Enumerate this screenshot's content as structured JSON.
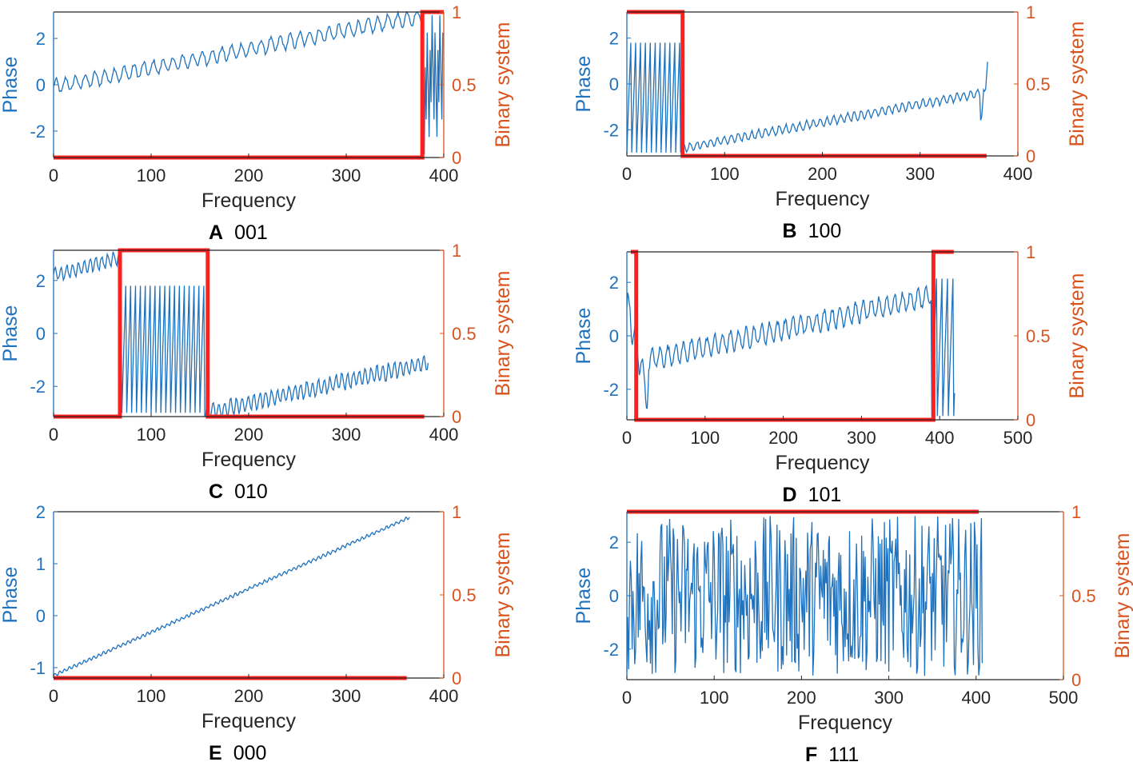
{
  "colors": {
    "phase": "#1f72bd",
    "binary": "#ff1f1f",
    "binary_axis": "#d9531e",
    "axis": "#262626",
    "text": "#000000"
  },
  "chart_data": [
    {
      "type": "line",
      "panel_letter": "A",
      "code": "001",
      "xlabel": "Frequency",
      "ylabel_left": "Phase",
      "ylabel_right": "Binary system",
      "xlim": [
        0,
        400
      ],
      "xticks": [
        "0",
        "100",
        "200",
        "300",
        "400"
      ],
      "ylim_left": [
        -3.1416,
        3.1416
      ],
      "yticks_left": [
        -2,
        0,
        2
      ],
      "ytick_labels_left": [
        "-2",
        "0",
        "2"
      ],
      "ylim_right": [
        0,
        1
      ],
      "yticks_right": [
        "0",
        "0.5",
        "1"
      ],
      "phase_series": {
        "name": "Phase",
        "n_points": 400,
        "segments": [
          {
            "from": 0,
            "to": 380,
            "kind": "linear",
            "start": -0.1,
            "end": 3.0,
            "ripple": 0.3,
            "ripple_period": 10
          },
          {
            "from": 380,
            "to": 400,
            "kind": "wrap",
            "period": 1.6
          }
        ]
      },
      "binary_series": {
        "name": "Binary system",
        "steps": [
          [
            0,
            0
          ],
          [
            378,
            1
          ],
          [
            400,
            1
          ]
        ]
      }
    },
    {
      "type": "line",
      "panel_letter": "B",
      "code": "100",
      "xlabel": "Frequency",
      "ylabel_left": "Phase",
      "ylabel_right": "Binary system",
      "xlim": [
        0,
        400
      ],
      "xticks": [
        "0",
        "100",
        "200",
        "300",
        "400"
      ],
      "ylim_left": [
        -3.1416,
        3.1416
      ],
      "yticks_left": [
        -2,
        0,
        2
      ],
      "ytick_labels_left": [
        "-2",
        "0",
        "2"
      ],
      "ylim_right": [
        0,
        1
      ],
      "yticks_right": [
        "0",
        "0.5",
        "1"
      ],
      "phase_series": {
        "name": "Phase",
        "n_points": 370,
        "segments": [
          {
            "from": 0,
            "to": 57,
            "kind": "wrap",
            "period": 5
          },
          {
            "from": 57,
            "to": 362,
            "kind": "linear",
            "start": -2.8,
            "end": -0.4,
            "ripple": 0.18,
            "ripple_period": 7
          },
          {
            "from": 362,
            "to": 370,
            "kind": "linear",
            "start": -1.5,
            "end": 0.9,
            "ripple": 0.3,
            "ripple_period": 4
          }
        ]
      },
      "binary_series": {
        "name": "Binary system",
        "steps": [
          [
            0,
            1
          ],
          [
            57,
            0
          ],
          [
            368,
            0
          ]
        ]
      }
    },
    {
      "type": "line",
      "panel_letter": "C",
      "code": "010",
      "xlabel": "Frequency",
      "ylabel_left": "Phase",
      "ylabel_right": "Binary system",
      "xlim": [
        0,
        400
      ],
      "xticks": [
        "0",
        "100",
        "200",
        "300",
        "400"
      ],
      "ylim_left": [
        -3.1416,
        3.1416
      ],
      "yticks_left": [
        -2,
        0,
        2
      ],
      "ytick_labels_left": [
        "-2",
        "0",
        "2"
      ],
      "ylim_right": [
        0,
        1
      ],
      "yticks_right": [
        "0",
        "0.5",
        "1"
      ],
      "phase_series": {
        "name": "Phase",
        "n_points": 385,
        "segments": [
          {
            "from": 0,
            "to": 70,
            "kind": "linear",
            "start": 2.2,
            "end": 2.9,
            "ripple": 0.25,
            "ripple_period": 6
          },
          {
            "from": 70,
            "to": 155,
            "kind": "wrap",
            "period": 5
          },
          {
            "from": 155,
            "to": 385,
            "kind": "linear",
            "start": -3.0,
            "end": -1.1,
            "ripple": 0.3,
            "ripple_period": 6
          }
        ]
      },
      "binary_series": {
        "name": "Binary system",
        "steps": [
          [
            0,
            0
          ],
          [
            68,
            1
          ],
          [
            158,
            0
          ],
          [
            380,
            0
          ]
        ]
      }
    },
    {
      "type": "line",
      "panel_letter": "D",
      "code": "101",
      "xlabel": "Frequency",
      "ylabel_left": "Phase",
      "ylabel_right": "Binary system",
      "xlim": [
        0,
        500
      ],
      "xticks": [
        "0",
        "100",
        "200",
        "300",
        "400",
        "500"
      ],
      "ylim_left": [
        -3.1416,
        3.1416
      ],
      "yticks_left": [
        -2,
        0,
        2
      ],
      "ytick_labels_left": [
        "-2",
        "0",
        "2"
      ],
      "ylim_right": [
        0,
        1
      ],
      "yticks_right": [
        "0",
        "0.5",
        "1"
      ],
      "phase_series": {
        "name": "Phase",
        "n_points": 420,
        "segments": [
          {
            "from": 0,
            "to": 28,
            "kind": "linear",
            "start": 1.2,
            "end": -2.4,
            "ripple": 0.6,
            "ripple_period": 9
          },
          {
            "from": 28,
            "to": 390,
            "kind": "linear",
            "start": -0.9,
            "end": 1.5,
            "ripple": 0.35,
            "ripple_period": 10
          },
          {
            "from": 390,
            "to": 420,
            "kind": "wrap",
            "period": 7
          }
        ]
      },
      "binary_series": {
        "name": "Binary system",
        "steps": [
          [
            5,
            1
          ],
          [
            12,
            0
          ],
          [
            392,
            1
          ],
          [
            418,
            1
          ]
        ]
      }
    },
    {
      "type": "line",
      "panel_letter": "E",
      "code": "000",
      "xlabel": "Frequency",
      "ylabel_left": "Phase",
      "ylabel_right": "Binary system",
      "xlim": [
        0,
        400
      ],
      "xticks": [
        "0",
        "100",
        "200",
        "300",
        "400"
      ],
      "ylim_left": [
        -1.2,
        2
      ],
      "yticks_left": [
        -1,
        0,
        1,
        2
      ],
      "ytick_labels_left": [
        "-1",
        "0",
        "1",
        "2"
      ],
      "ylim_right": [
        0,
        1
      ],
      "yticks_right": [
        "0",
        "0.5",
        "1"
      ],
      "phase_series": {
        "name": "Phase",
        "n_points": 366,
        "segments": [
          {
            "from": 0,
            "to": 366,
            "kind": "linear",
            "start": -1.15,
            "end": 1.9,
            "ripple": 0.03,
            "ripple_period": 5
          }
        ]
      },
      "binary_series": {
        "name": "Binary system",
        "steps": [
          [
            0,
            0
          ],
          [
            362,
            0
          ]
        ]
      }
    },
    {
      "type": "line",
      "panel_letter": "F",
      "code": "111",
      "xlabel": "Frequency",
      "ylabel_left": "Phase",
      "ylabel_right": "Binary system",
      "xlim": [
        0,
        500
      ],
      "xticks": [
        "0",
        "100",
        "200",
        "300",
        "400",
        "500"
      ],
      "ylim_left": [
        -3.1416,
        3.1416
      ],
      "yticks_left": [
        -2,
        0,
        2
      ],
      "ytick_labels_left": [
        "-2",
        "0",
        "2"
      ],
      "ylim_right": [
        0,
        1
      ],
      "yticks_right": [
        "0",
        "0.5",
        "1"
      ],
      "phase_series": {
        "name": "Phase",
        "n_points": 408,
        "segments": [
          {
            "from": 0,
            "to": 408,
            "kind": "random",
            "min": -3.0,
            "max": 3.0
          }
        ]
      },
      "binary_series": {
        "name": "Binary system",
        "steps": [
          [
            0,
            1
          ],
          [
            403,
            1
          ]
        ]
      }
    }
  ]
}
